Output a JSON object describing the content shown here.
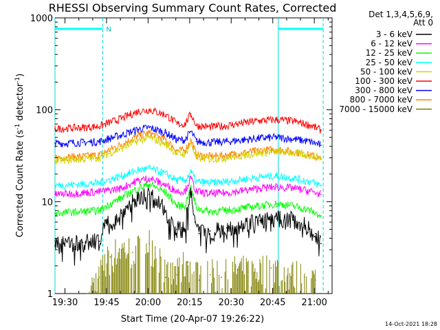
{
  "chart_data": {
    "type": "line",
    "title": "RHESSI Observing Summary Count Rates, Corrected",
    "xlabel": "Start Time (20-Apr-07 19:26:22)",
    "ylabel": "Corrected Count Rate (s-1 detector-1)",
    "ylabel_parts": {
      "a": "Corrected Count Rate (s",
      "b": "-1",
      "c": " detector",
      "d": "-1",
      "e": ")"
    },
    "yscale": "log",
    "ylim": [
      1,
      1000
    ],
    "xlim_minutes": [
      0,
      100
    ],
    "xticks": [
      {
        "label": "19:30",
        "minute": 3.6
      },
      {
        "label": "19:45",
        "minute": 18.6
      },
      {
        "label": "20:00",
        "minute": 33.6
      },
      {
        "label": "20:15",
        "minute": 48.6
      },
      {
        "label": "20:30",
        "minute": 63.6
      },
      {
        "label": "20:45",
        "minute": 78.6
      },
      {
        "label": "21:00",
        "minute": 93.6
      }
    ],
    "yticks": [
      {
        "label": "1",
        "value": 1
      },
      {
        "label": "10",
        "value": 10
      },
      {
        "label": "100",
        "value": 100
      },
      {
        "label": "1000",
        "value": 1000
      }
    ],
    "detector_info": "Det 1,3,4,5,6,9,",
    "attenuator": "Att 0",
    "night_marker": "N",
    "night_intervals": [
      [
        0,
        17.2
      ],
      [
        80.6,
        96.8
      ]
    ],
    "series": [
      {
        "name": "3 - 6 keV",
        "color": "#000000",
        "minutes": [
          0,
          10,
          16,
          18,
          24,
          30,
          34,
          38,
          44,
          47,
          49,
          50.5,
          52,
          56,
          62,
          68,
          74,
          80,
          86,
          90,
          94,
          96
        ],
        "values": [
          3.3,
          3.6,
          3.7,
          5.5,
          7.5,
          11,
          12,
          9,
          5,
          5,
          12,
          6,
          4.5,
          4.8,
          5.2,
          5.6,
          6.2,
          6.5,
          6.3,
          5.5,
          4.5,
          3.5
        ]
      },
      {
        "name": "6 - 12 keV",
        "color": "#ff00ff",
        "minutes": [
          0,
          10,
          16,
          24,
          30,
          34,
          40,
          44,
          47,
          49,
          51,
          56,
          62,
          68,
          74,
          80,
          86,
          92,
          96
        ],
        "values": [
          12,
          12.5,
          12.8,
          14,
          17,
          18,
          15,
          13,
          13,
          18,
          12.8,
          12.2,
          12.5,
          13.2,
          14,
          14.5,
          14,
          13,
          12
        ]
      },
      {
        "name": "12 - 25 keV",
        "color": "#00ff00",
        "minutes": [
          0,
          10,
          16,
          24,
          30,
          34,
          40,
          44,
          47,
          49,
          51,
          56,
          62,
          68,
          74,
          80,
          86,
          92,
          96
        ],
        "values": [
          7.5,
          7.8,
          8,
          11,
          14,
          15.5,
          12.5,
          9,
          9,
          14,
          8.5,
          7.8,
          8,
          8.5,
          9,
          9.5,
          9,
          8,
          7
        ]
      },
      {
        "name": "25 - 50 keV",
        "color": "#00ffff",
        "minutes": [
          0,
          10,
          16,
          24,
          30,
          34,
          40,
          44,
          47,
          49,
          51,
          56,
          62,
          68,
          74,
          80,
          86,
          92,
          96
        ],
        "values": [
          15,
          15.5,
          16,
          19,
          22,
          23,
          20,
          17,
          17,
          21,
          16.5,
          16,
          16.5,
          17.5,
          18.5,
          19,
          18,
          16.5,
          15
        ]
      },
      {
        "name": "50 - 100 keV",
        "color": "#d4d400",
        "minutes": [
          0,
          10,
          16,
          24,
          30,
          34,
          40,
          44,
          47,
          49,
          51,
          56,
          62,
          68,
          74,
          80,
          86,
          92,
          96
        ],
        "values": [
          28,
          29,
          30,
          38,
          46,
          50,
          42,
          33,
          33,
          43,
          30,
          29,
          30,
          32,
          34,
          35,
          34,
          32,
          30
        ]
      },
      {
        "name": "100 - 300 keV",
        "color": "#ff0000",
        "minutes": [
          0,
          10,
          16,
          24,
          30,
          34,
          40,
          44,
          47,
          49,
          51,
          56,
          62,
          68,
          74,
          80,
          86,
          92,
          96
        ],
        "values": [
          62,
          64,
          66,
          80,
          96,
          100,
          88,
          70,
          70,
          90,
          67,
          65,
          67,
          72,
          76,
          78,
          75,
          68,
          60
        ]
      },
      {
        "name": "300 - 800 keV",
        "color": "#0000ff",
        "minutes": [
          0,
          10,
          16,
          24,
          30,
          34,
          40,
          44,
          47,
          49,
          51,
          56,
          62,
          68,
          74,
          80,
          86,
          92,
          96
        ],
        "values": [
          43,
          44,
          45,
          53,
          61,
          64,
          56,
          47,
          47,
          58,
          45,
          44,
          45,
          47,
          49,
          50,
          48,
          45,
          41
        ]
      },
      {
        "name": "800 - 7000 keV",
        "color": "#ff8000",
        "minutes": [
          0,
          10,
          16,
          24,
          30,
          34,
          40,
          44,
          47,
          49,
          51,
          56,
          62,
          68,
          74,
          80,
          86,
          92,
          96
        ],
        "values": [
          30,
          31,
          32,
          42,
          52,
          56,
          47,
          36,
          36,
          47,
          32,
          31,
          32,
          34,
          36,
          37,
          35,
          32,
          29
        ]
      },
      {
        "name": "7000 - 15000 keV",
        "color": "#808000",
        "minutes": [
          12,
          16,
          20,
          24,
          28,
          34,
          38,
          40,
          44,
          48,
          52,
          56,
          60,
          66,
          72,
          78,
          84,
          90,
          94
        ],
        "values": [
          1,
          1.5,
          2.5,
          3,
          2.8,
          3.5,
          2.5,
          1.5,
          1.6,
          2.2,
          1.4,
          1.6,
          1.5,
          1.8,
          1.7,
          1.9,
          1.6,
          1.5,
          1.4
        ]
      }
    ]
  },
  "footer": {
    "date_stamp": "14-Oct-2021 18:28"
  }
}
